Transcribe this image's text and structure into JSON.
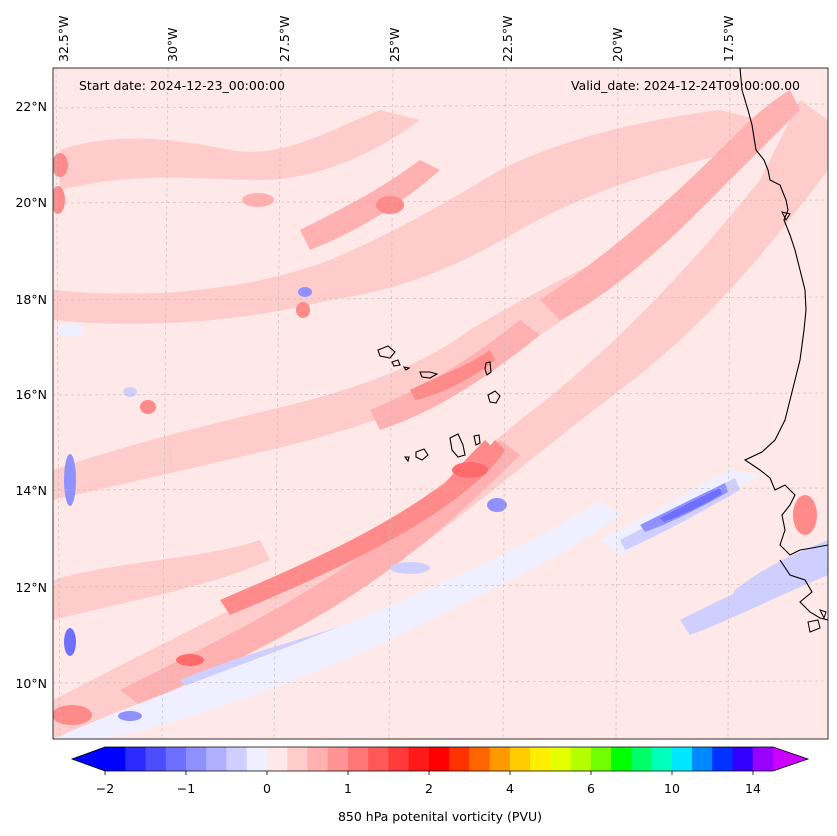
{
  "header": {
    "start_date": "Start date: 2024-12-23_00:00:00",
    "valid_date": "Valid_date: 2024-12-24T09:00:00.00"
  },
  "lon_labels": [
    "32.5°W",
    "30°W",
    "27.5°W",
    "25°W",
    "22.5°W",
    "20°W",
    "17.5°W"
  ],
  "lat_labels": [
    "22°N",
    "20°N",
    "18°N",
    "16°N",
    "14°N",
    "12°N",
    "10°N"
  ],
  "colorbar": {
    "title": "850 hPa potenital vorticity (PVU)",
    "tick_labels": [
      "−2",
      "−1",
      "0",
      "1",
      "2",
      "4",
      "6",
      "10",
      "14"
    ],
    "colors": [
      "#0000ff",
      "#2a2aff",
      "#4d4dff",
      "#6f6fff",
      "#9090ff",
      "#b0b0ff",
      "#cfcfff",
      "#efefff",
      "#ffe8e8",
      "#ffcccc",
      "#ffb0b0",
      "#ff9494",
      "#ff7676",
      "#ff5858",
      "#ff3a3a",
      "#ff1a1a",
      "#ff0000",
      "#ff3300",
      "#ff6600",
      "#ff9900",
      "#ffcc00",
      "#ffee00",
      "#e6ff00",
      "#b4ff00",
      "#70ff00",
      "#00ff00",
      "#00ff66",
      "#00ffbb",
      "#00e6ff",
      "#0088ff",
      "#0033ff",
      "#3300ff",
      "#9900ff"
    ],
    "extend_low_color": "#0000ff",
    "extend_high_color": "#cc00ff"
  },
  "field_colors": {
    "background": "#ffe8e8",
    "weak_pos": "#ffcccc",
    "mid_pos": "#ffb0b0",
    "strong_pos": "#ff8a8a",
    "core_pos": "#ff6a6a",
    "weak_neg": "#efefff",
    "mid_neg": "#cfcfff",
    "strong_neg": "#9090ff",
    "core_neg": "#5a5aff",
    "coast": "#000000",
    "grid": "#bbbbbb"
  }
}
